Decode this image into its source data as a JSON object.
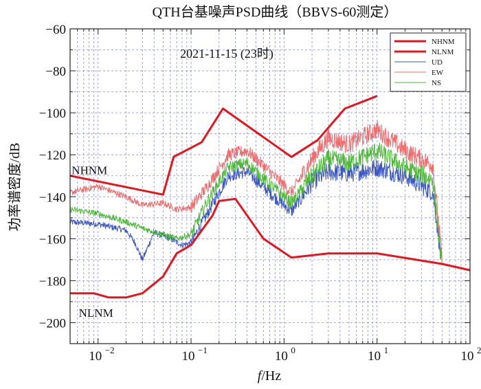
{
  "chart_data": {
    "type": "line",
    "title": "QTH台基噪声PSD曲线（BBVS-60测定）",
    "subtitle": "2021-11-15 (23时)",
    "xlabel_italic": "f",
    "xlabel_rest": "/Hz",
    "ylabel": "功率谱密度/dB",
    "xscale": "log",
    "xlim": [
      0.005,
      100
    ],
    "ylim": [
      -210,
      -60
    ],
    "yticks": [
      -60,
      -80,
      -100,
      -120,
      -140,
      -160,
      -180,
      -200
    ],
    "ytick_labels": [
      "−60",
      "−80",
      "−100",
      "−120",
      "−140",
      "−160",
      "−180",
      "−200"
    ],
    "xticks": [
      {
        "value": 0.01,
        "base": "10",
        "exp": "−2"
      },
      {
        "value": 0.1,
        "base": "10",
        "exp": "−1"
      },
      {
        "value": 1,
        "base": "10",
        "exp": "0"
      },
      {
        "value": 10,
        "base": "10",
        "exp": "1"
      },
      {
        "value": 100,
        "base": "10",
        "exp": "2"
      }
    ],
    "grid": true,
    "legend_position": "top-right",
    "annotations": [
      {
        "text": "NHNM",
        "x": 0.0052,
        "y": -127
      },
      {
        "text": "NLNM",
        "x": 0.0062,
        "y": -195
      }
    ],
    "series": [
      {
        "name": "NHNM",
        "color": "#e8141c",
        "width": 3,
        "x": [
          0.005,
          0.05,
          0.065,
          0.13,
          0.22,
          1.2,
          2.3,
          4.5,
          10
        ],
        "y": [
          -130,
          -139,
          -121,
          -114,
          -98,
          -121,
          -113,
          -98,
          -92
        ]
      },
      {
        "name": "NLNM",
        "color": "#e8141c",
        "width": 3,
        "x": [
          0.005,
          0.009,
          0.013,
          0.02,
          0.03,
          0.05,
          0.07,
          0.1,
          0.17,
          0.2,
          0.3,
          0.6,
          1.2,
          3,
          10,
          50,
          100
        ],
        "y": [
          -186,
          -186,
          -188,
          -188,
          -186,
          -178,
          -167,
          -163,
          -149,
          -142,
          -141,
          -160,
          -169,
          -167,
          -167,
          -172,
          -175
        ]
      },
      {
        "name": "UD",
        "color": "#3a56c4",
        "width": 1,
        "x": [
          0.005,
          0.01,
          0.02,
          0.025,
          0.03,
          0.04,
          0.06,
          0.08,
          0.1,
          0.15,
          0.25,
          0.4,
          0.7,
          1.2,
          2,
          3,
          5,
          10,
          20,
          40,
          50
        ],
        "y": [
          -152,
          -153,
          -156,
          -162,
          -170,
          -157,
          -160,
          -163,
          -162,
          -148,
          -130,
          -128,
          -138,
          -147,
          -133,
          -128,
          -129,
          -126,
          -130,
          -138,
          -172
        ]
      },
      {
        "name": "EW",
        "color": "#f26b6b",
        "width": 1,
        "x": [
          0.005,
          0.01,
          0.02,
          0.03,
          0.05,
          0.07,
          0.1,
          0.15,
          0.25,
          0.4,
          0.7,
          1.2,
          2,
          3,
          5,
          10,
          20,
          40,
          50
        ],
        "y": [
          -138,
          -135,
          -140,
          -144,
          -143,
          -146,
          -145,
          -135,
          -120,
          -118,
          -128,
          -138,
          -122,
          -112,
          -115,
          -108,
          -118,
          -125,
          -170
        ]
      },
      {
        "name": "NS",
        "color": "#4fb83a",
        "width": 1,
        "x": [
          0.005,
          0.01,
          0.02,
          0.03,
          0.05,
          0.07,
          0.1,
          0.15,
          0.25,
          0.4,
          0.7,
          1.2,
          2,
          3,
          5,
          10,
          20,
          40,
          50
        ],
        "y": [
          -146,
          -148,
          -152,
          -155,
          -158,
          -160,
          -158,
          -142,
          -126,
          -124,
          -134,
          -143,
          -130,
          -122,
          -124,
          -118,
          -126,
          -132,
          -174
        ]
      }
    ],
    "legend": [
      "NHNM",
      "NLNM",
      "UD",
      "EW",
      "NS"
    ]
  }
}
